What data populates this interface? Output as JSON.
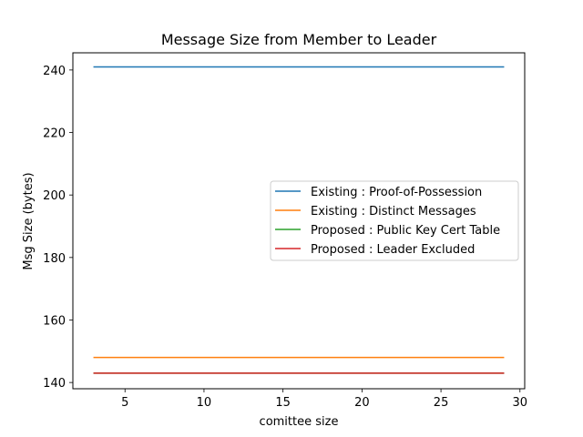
{
  "chart_data": {
    "type": "line",
    "title": "Message Size from Member to Leader",
    "xlabel": "comittee size",
    "ylabel": "Msg Size (bytes)",
    "xlim": [
      1.7,
      30.3
    ],
    "ylim": [
      138.0,
      245.5
    ],
    "xticks": [
      5,
      10,
      15,
      20,
      25,
      30
    ],
    "yticks": [
      140,
      160,
      180,
      200,
      220,
      240
    ],
    "grid": false,
    "legend_position": "center-right",
    "series": [
      {
        "name": "Existing : Proof-of-Possession",
        "color": "#1f77b4",
        "x": [
          3,
          29
        ],
        "y": [
          241,
          241
        ]
      },
      {
        "name": "Existing : Distinct Messages",
        "color": "#ff7f0e",
        "x": [
          3,
          29
        ],
        "y": [
          148,
          148
        ]
      },
      {
        "name": "Proposed : Public Key Cert Table",
        "color": "#2ca02c",
        "x": [
          3,
          29
        ],
        "y": [
          143,
          143
        ]
      },
      {
        "name": "Proposed : Leader Excluded",
        "color": "#d62728",
        "x": [
          3,
          29
        ],
        "y": [
          143,
          143
        ]
      }
    ]
  }
}
